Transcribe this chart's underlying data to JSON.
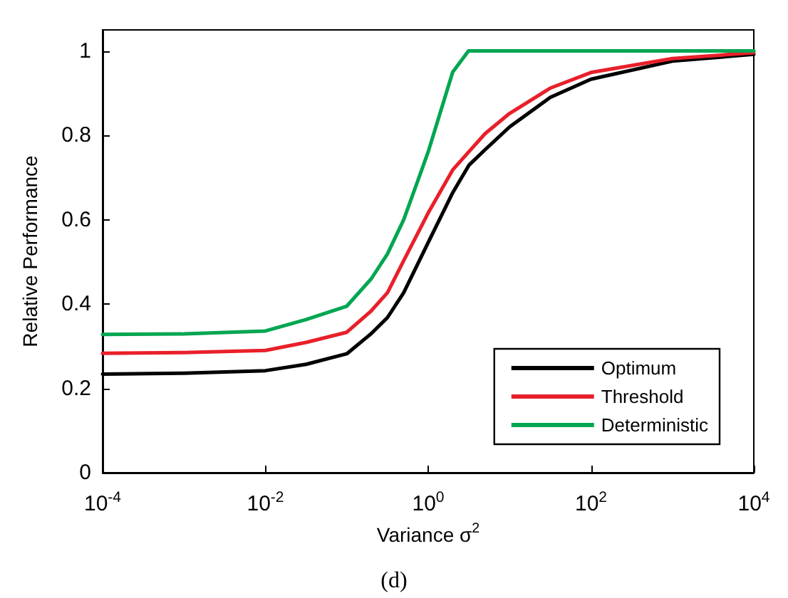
{
  "chart_data": {
    "type": "line",
    "xlabel": "Variance σ$^{2}$",
    "ylabel": "Relative Performance",
    "annotations": [
      "(d)"
    ],
    "log": "x",
    "xlim": [
      0.0001,
      10000
    ],
    "ylim": [
      0,
      1.05
    ],
    "xticks": [
      {
        "value": 0.0001,
        "label": "10$^{-4}$"
      },
      {
        "value": 0.01,
        "label": "10$^{-2}$"
      },
      {
        "value": 1,
        "label": "10$^{0}$"
      },
      {
        "value": 100,
        "label": "10$^{2}$"
      },
      {
        "value": 10000,
        "label": "10$^{4}$"
      }
    ],
    "yticks": [
      0,
      0.2,
      0.4,
      0.6,
      0.8,
      1
    ],
    "grid": false,
    "legend": "bottom right",
    "marker": "none",
    "line_style": "solid",
    "series": [
      {
        "name": "Optimum",
        "color": "#000000",
        "x": [
          0.0001,
          0.001,
          0.01,
          0.0316,
          0.1,
          0.2,
          0.316,
          0.5,
          1,
          2,
          3.16,
          5,
          10,
          31.6,
          100,
          1000,
          10000
        ],
        "values": [
          0.234,
          0.236,
          0.242,
          0.257,
          0.282,
          0.33,
          0.368,
          0.427,
          0.546,
          0.664,
          0.729,
          0.766,
          0.82,
          0.89,
          0.933,
          0.976,
          0.992
        ]
      },
      {
        "name": "Threshold",
        "color": "#e8202a",
        "x": [
          0.0001,
          0.001,
          0.01,
          0.0316,
          0.1,
          0.2,
          0.316,
          0.5,
          1,
          2,
          3.16,
          5,
          10,
          31.6,
          100,
          1000,
          10000
        ],
        "values": [
          0.283,
          0.285,
          0.29,
          0.309,
          0.333,
          0.384,
          0.427,
          0.503,
          0.616,
          0.718,
          0.761,
          0.804,
          0.852,
          0.912,
          0.949,
          0.982,
          0.996
        ]
      },
      {
        "name": "Deterministic",
        "color": "#00a651",
        "x": [
          0.0001,
          0.001,
          0.01,
          0.0316,
          0.1,
          0.2,
          0.316,
          0.5,
          0.794,
          1,
          2,
          3.13,
          10000
        ],
        "values": [
          0.328,
          0.329,
          0.336,
          0.363,
          0.395,
          0.46,
          0.519,
          0.6,
          0.707,
          0.761,
          0.95,
          1.0,
          1.0
        ]
      }
    ]
  }
}
